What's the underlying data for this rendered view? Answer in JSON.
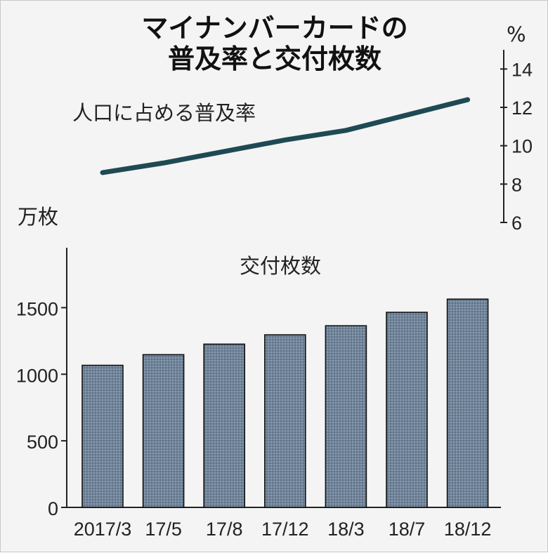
{
  "chart_data": {
    "title_line1": "マイナンバーカードの",
    "title_line2": "普及率と交付枚数",
    "categories": [
      "2017/3",
      "17/5",
      "17/8",
      "17/12",
      "18/3",
      "18/7",
      "18/12"
    ],
    "line": {
      "label": "人口に占める普及率",
      "unit": "%",
      "y_ticks": [
        6,
        8,
        10,
        12,
        14
      ],
      "ylim": [
        6,
        15
      ],
      "type": "line",
      "color": "#1e4a54",
      "values": [
        8.6,
        9.1,
        9.7,
        10.3,
        10.8,
        11.6,
        12.4
      ]
    },
    "bars": {
      "label": "交付枚数",
      "unit": "万枚",
      "y_ticks": [
        0,
        500,
        1000,
        1500
      ],
      "ylim": [
        0,
        1950
      ],
      "type": "bar",
      "color": "#6f8399",
      "values": [
        1067,
        1147,
        1226,
        1296,
        1364,
        1465,
        1564
      ]
    }
  }
}
